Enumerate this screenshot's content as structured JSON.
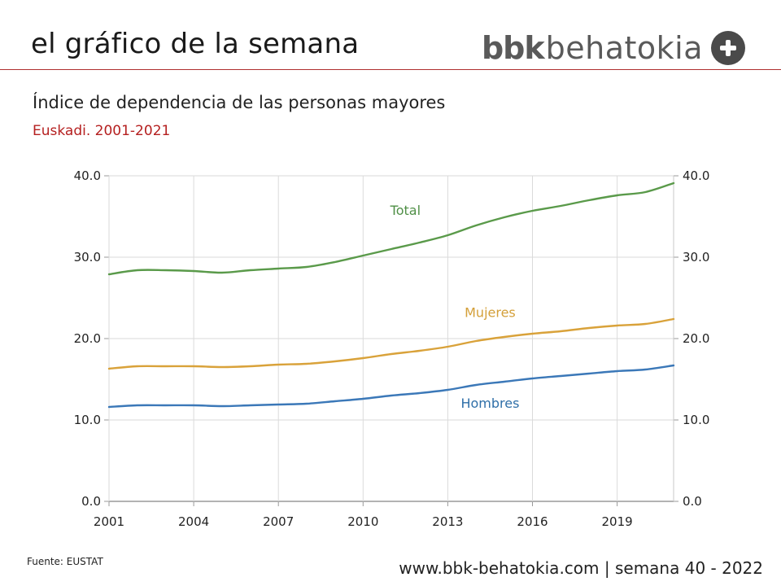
{
  "header": {
    "title": "el gráfico de la semana",
    "brand_bold": "bbk",
    "brand_light": "behatokia"
  },
  "chart_data": {
    "type": "line",
    "title": "Índice de dependencia de las personas mayores",
    "subtitle": "Euskadi. 2001-2021",
    "x": [
      2001,
      2002,
      2003,
      2004,
      2005,
      2006,
      2007,
      2008,
      2009,
      2010,
      2011,
      2012,
      2013,
      2014,
      2015,
      2016,
      2017,
      2018,
      2019,
      2020,
      2021
    ],
    "xticks": [
      "2001",
      "2004",
      "2007",
      "2010",
      "2013",
      "2016",
      "2019"
    ],
    "yticks": [
      "0.0",
      "10.0",
      "20.0",
      "30.0",
      "40.0"
    ],
    "xlim": [
      2001,
      2021
    ],
    "ylim": [
      0,
      40
    ],
    "series": [
      {
        "name": "Total",
        "label": "Total",
        "color": "#5a9a4a",
        "values": [
          27.9,
          28.4,
          28.4,
          28.3,
          28.1,
          28.4,
          28.6,
          28.8,
          29.4,
          30.2,
          31.0,
          31.8,
          32.7,
          33.9,
          34.9,
          35.7,
          36.3,
          37.0,
          37.6,
          38.0,
          39.1
        ]
      },
      {
        "name": "Mujeres",
        "label": "Mujeres",
        "color": "#d9a23a",
        "values": [
          16.3,
          16.6,
          16.6,
          16.6,
          16.5,
          16.6,
          16.8,
          16.9,
          17.2,
          17.6,
          18.1,
          18.5,
          19.0,
          19.7,
          20.2,
          20.6,
          20.9,
          21.3,
          21.6,
          21.8,
          22.4
        ]
      },
      {
        "name": "Hombres",
        "label": "Hombres",
        "color": "#3b78b8",
        "values": [
          11.6,
          11.8,
          11.8,
          11.8,
          11.7,
          11.8,
          11.9,
          12.0,
          12.3,
          12.6,
          13.0,
          13.3,
          13.7,
          14.3,
          14.7,
          15.1,
          15.4,
          15.7,
          16.0,
          16.2,
          16.7
        ]
      }
    ]
  },
  "footer": {
    "source": "Fuente: EUSTAT",
    "site": "www.bbk-behatokia.com | semana 40 - 2022"
  }
}
